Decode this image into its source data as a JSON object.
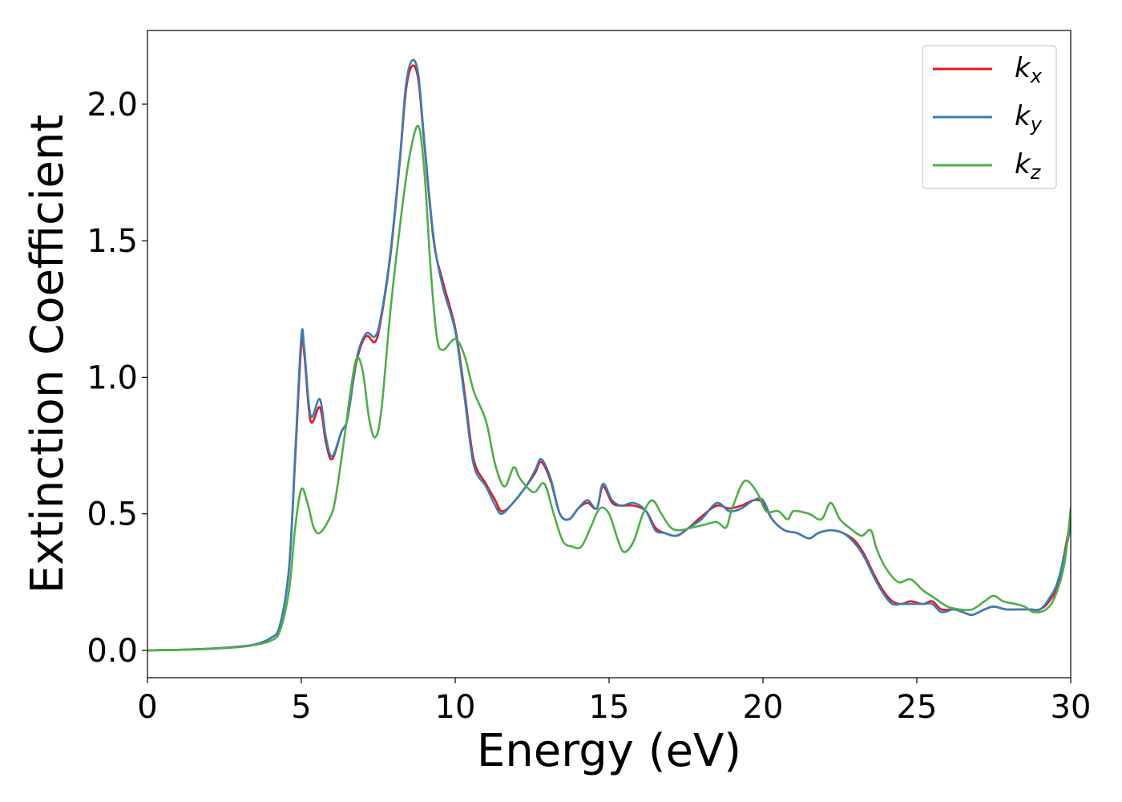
{
  "chart_data": {
    "type": "line",
    "title": "",
    "xlabel": "Energy (eV)",
    "ylabel": "Extinction Coefficient",
    "xlim": [
      0,
      30
    ],
    "ylim": [
      -0.1,
      2.27
    ],
    "xticks": [
      0,
      5,
      10,
      15,
      20,
      25,
      30
    ],
    "xtick_labels": [
      "0",
      "5",
      "10",
      "15",
      "20",
      "25",
      "30"
    ],
    "yticks": [
      0.0,
      0.5,
      1.0,
      1.5,
      2.0
    ],
    "ytick_labels": [
      "0.0",
      "0.5",
      "1.0",
      "1.5",
      "2.0"
    ],
    "grid": false,
    "legend_position": "top-right",
    "series": [
      {
        "name": "k",
        "sub": "x",
        "color": "#e41a1c",
        "points": [
          [
            0,
            0
          ],
          [
            1,
            0.002
          ],
          [
            2,
            0.006
          ],
          [
            3,
            0.014
          ],
          [
            3.5,
            0.022
          ],
          [
            4,
            0.045
          ],
          [
            4.3,
            0.09
          ],
          [
            4.6,
            0.3
          ],
          [
            4.8,
            0.7
          ],
          [
            5.0,
            1.12
          ],
          [
            5.1,
            1.08
          ],
          [
            5.3,
            0.84
          ],
          [
            5.6,
            0.89
          ],
          [
            5.8,
            0.76
          ],
          [
            6.0,
            0.7
          ],
          [
            6.3,
            0.8
          ],
          [
            6.5,
            0.85
          ],
          [
            6.8,
            1.06
          ],
          [
            7.1,
            1.15
          ],
          [
            7.4,
            1.13
          ],
          [
            7.6,
            1.22
          ],
          [
            7.9,
            1.45
          ],
          [
            8.2,
            1.79
          ],
          [
            8.4,
            2.05
          ],
          [
            8.6,
            2.14
          ],
          [
            8.8,
            2.09
          ],
          [
            9.0,
            1.85
          ],
          [
            9.3,
            1.5
          ],
          [
            9.6,
            1.35
          ],
          [
            10.0,
            1.18
          ],
          [
            10.3,
            0.95
          ],
          [
            10.6,
            0.7
          ],
          [
            11.0,
            0.61
          ],
          [
            11.3,
            0.55
          ],
          [
            11.5,
            0.51
          ],
          [
            11.8,
            0.53
          ],
          [
            12.3,
            0.6
          ],
          [
            12.6,
            0.65
          ],
          [
            12.8,
            0.69
          ],
          [
            13.1,
            0.62
          ],
          [
            13.4,
            0.5
          ],
          [
            13.7,
            0.48
          ],
          [
            14.0,
            0.52
          ],
          [
            14.3,
            0.54
          ],
          [
            14.6,
            0.52
          ],
          [
            14.8,
            0.6
          ],
          [
            15.1,
            0.54
          ],
          [
            15.4,
            0.53
          ],
          [
            15.8,
            0.53
          ],
          [
            16.2,
            0.51
          ],
          [
            16.5,
            0.45
          ],
          [
            16.8,
            0.43
          ],
          [
            17.2,
            0.42
          ],
          [
            17.6,
            0.45
          ],
          [
            18.0,
            0.49
          ],
          [
            18.5,
            0.53
          ],
          [
            18.9,
            0.52
          ],
          [
            19.3,
            0.53
          ],
          [
            19.7,
            0.55
          ],
          [
            20.0,
            0.54
          ],
          [
            20.3,
            0.48
          ],
          [
            20.7,
            0.44
          ],
          [
            21.1,
            0.43
          ],
          [
            21.5,
            0.41
          ],
          [
            21.8,
            0.43
          ],
          [
            22.2,
            0.44
          ],
          [
            22.6,
            0.43
          ],
          [
            23.0,
            0.4
          ],
          [
            23.3,
            0.35
          ],
          [
            23.6,
            0.28
          ],
          [
            23.9,
            0.22
          ],
          [
            24.2,
            0.18
          ],
          [
            24.5,
            0.17
          ],
          [
            24.8,
            0.18
          ],
          [
            25.2,
            0.17
          ],
          [
            25.5,
            0.18
          ],
          [
            25.8,
            0.15
          ],
          [
            26.2,
            0.15
          ],
          [
            26.5,
            0.14
          ],
          [
            26.8,
            0.13
          ],
          [
            27.2,
            0.15
          ],
          [
            27.5,
            0.16
          ],
          [
            27.9,
            0.15
          ],
          [
            28.3,
            0.15
          ],
          [
            28.7,
            0.15
          ],
          [
            29.0,
            0.15
          ],
          [
            29.3,
            0.18
          ],
          [
            29.6,
            0.25
          ],
          [
            30.0,
            0.48
          ]
        ]
      },
      {
        "name": "k",
        "sub": "y",
        "color": "#377eb8",
        "points": [
          [
            0,
            0
          ],
          [
            1,
            0.002
          ],
          [
            2,
            0.006
          ],
          [
            3,
            0.014
          ],
          [
            3.5,
            0.022
          ],
          [
            4,
            0.045
          ],
          [
            4.3,
            0.09
          ],
          [
            4.6,
            0.3
          ],
          [
            4.8,
            0.72
          ],
          [
            5.0,
            1.15
          ],
          [
            5.1,
            1.1
          ],
          [
            5.3,
            0.86
          ],
          [
            5.6,
            0.92
          ],
          [
            5.8,
            0.78
          ],
          [
            6.0,
            0.71
          ],
          [
            6.3,
            0.8
          ],
          [
            6.5,
            0.85
          ],
          [
            6.8,
            1.07
          ],
          [
            7.1,
            1.16
          ],
          [
            7.4,
            1.15
          ],
          [
            7.6,
            1.23
          ],
          [
            7.9,
            1.46
          ],
          [
            8.2,
            1.8
          ],
          [
            8.4,
            2.07
          ],
          [
            8.6,
            2.16
          ],
          [
            8.8,
            2.11
          ],
          [
            9.0,
            1.86
          ],
          [
            9.3,
            1.51
          ],
          [
            9.6,
            1.33
          ],
          [
            10.0,
            1.17
          ],
          [
            10.3,
            0.93
          ],
          [
            10.6,
            0.68
          ],
          [
            11.0,
            0.6
          ],
          [
            11.3,
            0.53
          ],
          [
            11.5,
            0.5
          ],
          [
            11.8,
            0.53
          ],
          [
            12.3,
            0.6
          ],
          [
            12.6,
            0.66
          ],
          [
            12.8,
            0.7
          ],
          [
            13.1,
            0.63
          ],
          [
            13.4,
            0.5
          ],
          [
            13.7,
            0.48
          ],
          [
            14.0,
            0.52
          ],
          [
            14.3,
            0.55
          ],
          [
            14.6,
            0.52
          ],
          [
            14.8,
            0.61
          ],
          [
            15.1,
            0.55
          ],
          [
            15.4,
            0.53
          ],
          [
            15.8,
            0.54
          ],
          [
            16.2,
            0.51
          ],
          [
            16.5,
            0.44
          ],
          [
            16.8,
            0.43
          ],
          [
            17.2,
            0.42
          ],
          [
            17.6,
            0.45
          ],
          [
            18.0,
            0.48
          ],
          [
            18.5,
            0.54
          ],
          [
            18.9,
            0.51
          ],
          [
            19.3,
            0.52
          ],
          [
            19.7,
            0.55
          ],
          [
            20.0,
            0.55
          ],
          [
            20.3,
            0.48
          ],
          [
            20.7,
            0.44
          ],
          [
            21.1,
            0.43
          ],
          [
            21.5,
            0.41
          ],
          [
            21.8,
            0.43
          ],
          [
            22.2,
            0.44
          ],
          [
            22.6,
            0.43
          ],
          [
            23.0,
            0.39
          ],
          [
            23.3,
            0.34
          ],
          [
            23.6,
            0.27
          ],
          [
            23.9,
            0.21
          ],
          [
            24.2,
            0.17
          ],
          [
            24.5,
            0.17
          ],
          [
            24.8,
            0.17
          ],
          [
            25.2,
            0.17
          ],
          [
            25.5,
            0.17
          ],
          [
            25.8,
            0.14
          ],
          [
            26.2,
            0.15
          ],
          [
            26.5,
            0.14
          ],
          [
            26.8,
            0.13
          ],
          [
            27.2,
            0.15
          ],
          [
            27.5,
            0.16
          ],
          [
            27.9,
            0.15
          ],
          [
            28.3,
            0.15
          ],
          [
            28.7,
            0.15
          ],
          [
            29.0,
            0.15
          ],
          [
            29.3,
            0.19
          ],
          [
            29.6,
            0.26
          ],
          [
            30.0,
            0.45
          ]
        ]
      },
      {
        "name": "k",
        "sub": "z",
        "color": "#4daf4a",
        "points": [
          [
            0,
            0
          ],
          [
            1,
            0.002
          ],
          [
            2,
            0.005
          ],
          [
            3,
            0.012
          ],
          [
            3.5,
            0.02
          ],
          [
            4,
            0.035
          ],
          [
            4.3,
            0.07
          ],
          [
            4.6,
            0.22
          ],
          [
            4.8,
            0.45
          ],
          [
            5.0,
            0.59
          ],
          [
            5.2,
            0.54
          ],
          [
            5.4,
            0.45
          ],
          [
            5.6,
            0.43
          ],
          [
            5.9,
            0.48
          ],
          [
            6.1,
            0.55
          ],
          [
            6.4,
            0.78
          ],
          [
            6.6,
            0.95
          ],
          [
            6.8,
            1.07
          ],
          [
            7.0,
            1.02
          ],
          [
            7.2,
            0.85
          ],
          [
            7.4,
            0.78
          ],
          [
            7.6,
            0.88
          ],
          [
            7.9,
            1.25
          ],
          [
            8.2,
            1.55
          ],
          [
            8.5,
            1.8
          ],
          [
            8.8,
            1.92
          ],
          [
            9.0,
            1.75
          ],
          [
            9.2,
            1.4
          ],
          [
            9.4,
            1.15
          ],
          [
            9.6,
            1.1
          ],
          [
            10.0,
            1.14
          ],
          [
            10.3,
            1.08
          ],
          [
            10.6,
            0.95
          ],
          [
            11.0,
            0.84
          ],
          [
            11.3,
            0.68
          ],
          [
            11.6,
            0.6
          ],
          [
            11.9,
            0.67
          ],
          [
            12.1,
            0.63
          ],
          [
            12.4,
            0.59
          ],
          [
            12.6,
            0.58
          ],
          [
            12.9,
            0.61
          ],
          [
            13.2,
            0.5
          ],
          [
            13.5,
            0.4
          ],
          [
            13.8,
            0.38
          ],
          [
            14.1,
            0.38
          ],
          [
            14.4,
            0.45
          ],
          [
            14.7,
            0.52
          ],
          [
            15.0,
            0.5
          ],
          [
            15.3,
            0.4
          ],
          [
            15.5,
            0.36
          ],
          [
            15.8,
            0.4
          ],
          [
            16.1,
            0.5
          ],
          [
            16.4,
            0.55
          ],
          [
            16.7,
            0.5
          ],
          [
            17.0,
            0.45
          ],
          [
            17.3,
            0.44
          ],
          [
            17.7,
            0.45
          ],
          [
            18.1,
            0.46
          ],
          [
            18.5,
            0.47
          ],
          [
            18.8,
            0.45
          ],
          [
            19.0,
            0.52
          ],
          [
            19.4,
            0.62
          ],
          [
            19.8,
            0.58
          ],
          [
            20.1,
            0.51
          ],
          [
            20.5,
            0.51
          ],
          [
            20.8,
            0.48
          ],
          [
            21.0,
            0.51
          ],
          [
            21.5,
            0.5
          ],
          [
            21.9,
            0.48
          ],
          [
            22.2,
            0.54
          ],
          [
            22.5,
            0.48
          ],
          [
            22.8,
            0.45
          ],
          [
            23.2,
            0.42
          ],
          [
            23.5,
            0.44
          ],
          [
            23.7,
            0.37
          ],
          [
            24.0,
            0.3
          ],
          [
            24.4,
            0.25
          ],
          [
            24.8,
            0.26
          ],
          [
            25.2,
            0.22
          ],
          [
            25.6,
            0.19
          ],
          [
            26.0,
            0.16
          ],
          [
            26.4,
            0.15
          ],
          [
            26.8,
            0.15
          ],
          [
            27.2,
            0.18
          ],
          [
            27.5,
            0.2
          ],
          [
            27.8,
            0.18
          ],
          [
            28.2,
            0.17
          ],
          [
            28.5,
            0.16
          ],
          [
            28.8,
            0.14
          ],
          [
            29.2,
            0.15
          ],
          [
            29.5,
            0.2
          ],
          [
            29.8,
            0.32
          ],
          [
            30.0,
            0.52
          ]
        ]
      }
    ]
  }
}
